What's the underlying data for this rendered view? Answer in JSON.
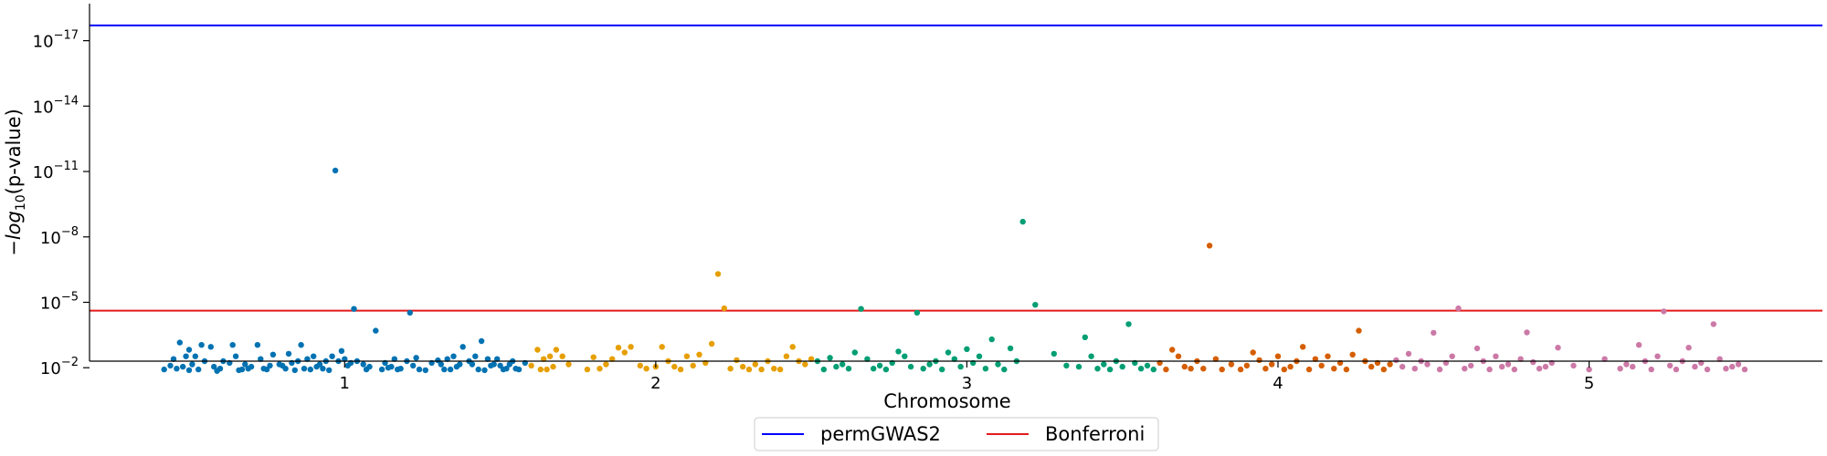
{
  "chart_data": {
    "type": "scatter",
    "title": "",
    "xlabel": "Chromosome",
    "ylabel_parts": {
      "prefix": "−",
      "log": "log",
      "sub": "10",
      "suffix": "(p-value)"
    },
    "y_scale": "log",
    "ylim": [
      0.005,
      2e-19
    ],
    "y_ticks": [
      {
        "value": 0.01,
        "base": "10",
        "exp": "−2"
      },
      {
        "value": 1e-05,
        "base": "10",
        "exp": "−5"
      },
      {
        "value": 1e-08,
        "base": "10",
        "exp": "−8"
      },
      {
        "value": 1e-11,
        "base": "10",
        "exp": "−11"
      },
      {
        "value": 1e-14,
        "base": "10",
        "exp": "−14"
      },
      {
        "value": 1e-17,
        "base": "10",
        "exp": "−17"
      }
    ],
    "xlim": [
      0.18,
      5.75
    ],
    "x_ticks": [
      {
        "value": 1,
        "label": "1"
      },
      {
        "value": 2,
        "label": "2"
      },
      {
        "value": 3,
        "label": "3"
      },
      {
        "value": 4,
        "label": "4"
      },
      {
        "value": 5,
        "label": "5"
      }
    ],
    "grid": false,
    "legend_position": "bottom-center",
    "thresholds": [
      {
        "name": "permGWAS2",
        "value": 2e-18,
        "color": "#0000ff"
      },
      {
        "name": "Bonferroni",
        "value": 2.4e-05,
        "color": "#e41a1c"
      }
    ],
    "series": [
      {
        "color": "#0072b2",
        "x": [
          0.42,
          0.44,
          0.45,
          0.46,
          0.47,
          0.48,
          0.49,
          0.5,
          0.5,
          0.51,
          0.52,
          0.53,
          0.54,
          0.55,
          0.57,
          0.58,
          0.59,
          0.6,
          0.61,
          0.63,
          0.64,
          0.65,
          0.66,
          0.67,
          0.68,
          0.69,
          0.7,
          0.72,
          0.73,
          0.74,
          0.75,
          0.76,
          0.77,
          0.79,
          0.8,
          0.81,
          0.82,
          0.83,
          0.84,
          0.85,
          0.86,
          0.87,
          0.88,
          0.89,
          0.9,
          0.91,
          0.92,
          0.93,
          0.94,
          0.95,
          0.96,
          0.97,
          0.98,
          0.99,
          1.0,
          1.01,
          1.02,
          1.03,
          1.04,
          1.06,
          1.07,
          1.08,
          1.1,
          1.12,
          1.13,
          1.14,
          1.15,
          1.16,
          1.17,
          1.18,
          1.2,
          1.21,
          1.22,
          1.23,
          1.24,
          1.26,
          1.28,
          1.3,
          1.31,
          1.32,
          1.33,
          1.34,
          1.35,
          1.36,
          1.37,
          1.38,
          1.4,
          1.41,
          1.42,
          1.43,
          1.44,
          1.45,
          1.46,
          1.47,
          1.48,
          1.49,
          1.5,
          1.51,
          1.52,
          1.53,
          1.54,
          1.55,
          1.56,
          1.58
        ],
        "y": [
          0.012,
          0.008,
          0.004,
          0.011,
          0.0007,
          0.009,
          0.003,
          0.013,
          0.0015,
          0.007,
          0.003,
          0.012,
          0.0009,
          0.005,
          0.0011,
          0.009,
          0.014,
          0.011,
          0.005,
          0.006,
          0.0009,
          0.003,
          0.013,
          0.012,
          0.007,
          0.011,
          0.009,
          0.0009,
          0.004,
          0.011,
          0.012,
          0.008,
          0.0025,
          0.007,
          0.008,
          0.011,
          0.0023,
          0.006,
          0.013,
          0.005,
          0.0009,
          0.011,
          0.004,
          0.012,
          0.003,
          0.009,
          0.007,
          0.011,
          0.005,
          0.013,
          0.003,
          9e-12,
          0.005,
          0.0017,
          0.004,
          0.008,
          0.006,
          2e-05,
          0.005,
          0.007,
          0.012,
          0.009,
          0.0002,
          0.012,
          0.006,
          0.01,
          0.009,
          0.004,
          0.012,
          0.011,
          0.005,
          3e-05,
          0.008,
          0.0035,
          0.012,
          0.013,
          0.006,
          0.0046,
          0.007,
          0.012,
          0.004,
          0.012,
          0.003,
          0.009,
          0.007,
          0.0011,
          0.005,
          0.007,
          0.003,
          0.012,
          0.0006,
          0.013,
          0.004,
          0.008,
          0.007,
          0.004,
          0.008,
          0.012,
          0.011,
          0.007,
          0.005,
          0.011,
          0.012,
          0.006
        ]
      },
      {
        "color": "#e69f00",
        "x": [
          1.6,
          1.62,
          1.63,
          1.64,
          1.65,
          1.66,
          1.67,
          1.68,
          1.7,
          1.72,
          1.78,
          1.8,
          1.82,
          1.84,
          1.86,
          1.88,
          1.9,
          1.92,
          1.95,
          1.97,
          2.0,
          2.02,
          2.04,
          2.06,
          2.08,
          2.1,
          2.12,
          2.14,
          2.16,
          2.18,
          2.2,
          2.22,
          2.24,
          2.26,
          2.28,
          2.3,
          2.32,
          2.34,
          2.36,
          2.38,
          2.4,
          2.42,
          2.44,
          2.46,
          2.48,
          2.5
        ],
        "y": [
          0.008,
          0.0015,
          0.012,
          0.004,
          0.012,
          0.003,
          0.009,
          0.0015,
          0.003,
          0.007,
          0.012,
          0.0033,
          0.011,
          0.007,
          0.004,
          0.0012,
          0.002,
          0.0011,
          0.008,
          0.011,
          0.009,
          0.0011,
          0.005,
          0.009,
          0.012,
          0.003,
          0.008,
          0.0025,
          0.006,
          0.0008,
          5e-07,
          1.9e-05,
          0.011,
          0.0045,
          0.009,
          0.012,
          0.007,
          0.012,
          0.005,
          0.011,
          0.012,
          0.003,
          0.0011,
          0.005,
          0.007,
          0.004
        ]
      },
      {
        "color": "#009e73",
        "x": [
          2.52,
          2.54,
          2.56,
          2.58,
          2.6,
          2.62,
          2.64,
          2.66,
          2.68,
          2.7,
          2.72,
          2.74,
          2.76,
          2.78,
          2.8,
          2.82,
          2.84,
          2.86,
          2.88,
          2.9,
          2.92,
          2.94,
          2.96,
          2.98,
          3.0,
          3.02,
          3.04,
          3.06,
          3.08,
          3.1,
          3.12,
          3.14,
          3.16,
          3.18,
          3.22,
          3.28,
          3.32,
          3.36,
          3.38,
          3.4,
          3.42,
          3.44,
          3.46,
          3.48,
          3.5,
          3.52,
          3.54,
          3.56,
          3.58,
          3.6
        ],
        "y": [
          0.005,
          0.012,
          0.0035,
          0.009,
          0.007,
          0.011,
          0.002,
          2e-05,
          0.004,
          0.011,
          0.008,
          0.012,
          0.006,
          0.0018,
          0.003,
          0.009,
          3e-05,
          0.011,
          0.007,
          0.005,
          0.012,
          0.002,
          0.004,
          0.009,
          0.0014,
          0.006,
          0.003,
          0.011,
          0.0005,
          0.007,
          0.012,
          0.0013,
          0.005,
          2e-09,
          1.3e-05,
          0.0023,
          0.008,
          0.009,
          0.0004,
          0.003,
          0.011,
          0.007,
          0.012,
          0.005,
          0.009,
          0.0001,
          0.006,
          0.011,
          0.008,
          0.012
        ]
      },
      {
        "color": "#d55e00",
        "x": [
          3.62,
          3.64,
          3.66,
          3.68,
          3.7,
          3.72,
          3.74,
          3.76,
          3.78,
          3.8,
          3.82,
          3.85,
          3.88,
          3.9,
          3.92,
          3.94,
          3.96,
          3.98,
          4.0,
          4.02,
          4.04,
          4.06,
          4.08,
          4.1,
          4.12,
          4.14,
          4.16,
          4.18,
          4.2,
          4.22,
          4.24,
          4.26,
          4.28,
          4.3,
          4.32,
          4.34,
          4.36
        ],
        "y": [
          0.006,
          0.012,
          0.0015,
          0.003,
          0.009,
          0.011,
          0.005,
          0.011,
          2.5e-08,
          0.004,
          0.012,
          0.007,
          0.012,
          0.008,
          0.002,
          0.0045,
          0.011,
          0.007,
          0.003,
          0.012,
          0.009,
          0.005,
          0.0011,
          0.012,
          0.004,
          0.008,
          0.003,
          0.011,
          0.006,
          0.012,
          0.0025,
          0.0002,
          0.005,
          0.009,
          0.006,
          0.012,
          0.007
        ]
      },
      {
        "color": "#cc79a7",
        "x": [
          4.38,
          4.4,
          4.42,
          4.44,
          4.46,
          4.48,
          4.5,
          4.52,
          4.54,
          4.56,
          4.58,
          4.6,
          4.62,
          4.64,
          4.66,
          4.68,
          4.7,
          4.72,
          4.74,
          4.76,
          4.78,
          4.8,
          4.82,
          4.84,
          4.86,
          4.88,
          4.9,
          4.95,
          5.0,
          5.05,
          5.1,
          5.12,
          5.14,
          5.16,
          5.18,
          5.2,
          5.22,
          5.24,
          5.26,
          5.28,
          5.3,
          5.32,
          5.34,
          5.36,
          5.38,
          5.4,
          5.42,
          5.44,
          5.46,
          5.48,
          5.5
        ],
        "y": [
          0.0045,
          0.009,
          0.0023,
          0.011,
          0.005,
          0.007,
          0.00025,
          0.012,
          0.006,
          0.003,
          1.9e-05,
          0.011,
          0.008,
          0.0013,
          0.005,
          0.012,
          0.003,
          0.009,
          0.007,
          0.012,
          0.004,
          0.00024,
          0.0055,
          0.011,
          0.009,
          0.006,
          0.0012,
          0.008,
          0.012,
          0.004,
          0.011,
          0.007,
          0.009,
          0.0009,
          0.005,
          0.012,
          0.003,
          2.6e-05,
          0.008,
          0.012,
          0.005,
          0.0012,
          0.009,
          0.006,
          0.012,
          0.0001,
          0.004,
          0.011,
          0.009,
          0.007,
          0.012
        ]
      }
    ]
  }
}
